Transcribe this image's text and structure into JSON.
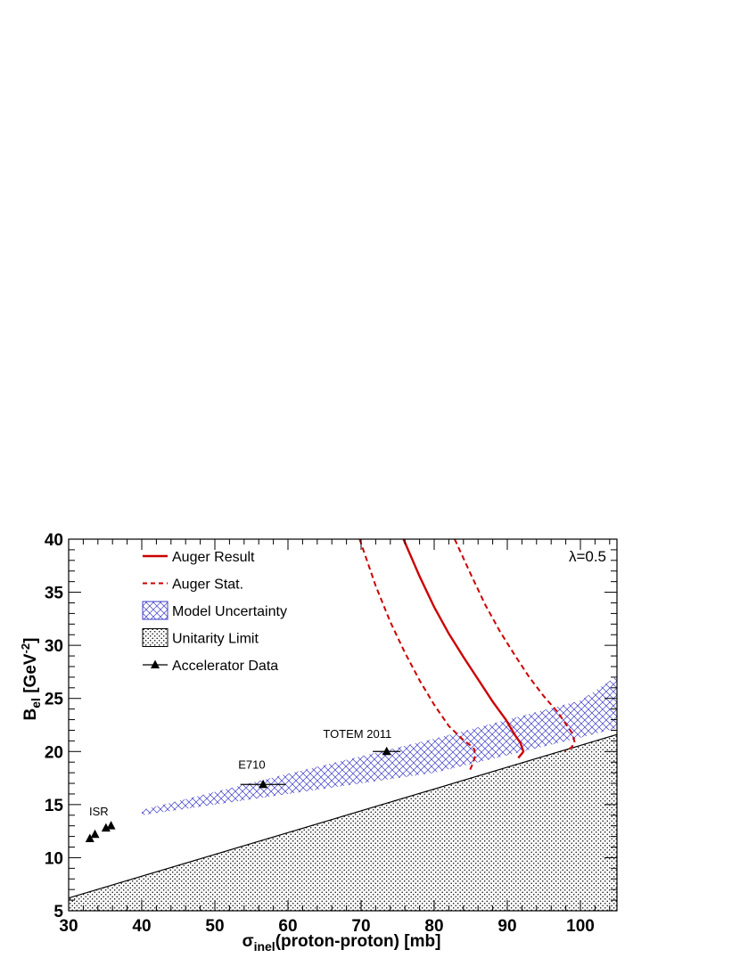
{
  "chart_data": {
    "type": "line",
    "xlabel": {
      "symbol": "σ",
      "sub": "inel",
      "rest": "(proton-proton)  [mb]"
    },
    "ylabel": {
      "symbol": "B",
      "sub": "el",
      "rest": "  [GeV",
      "sup": "-2",
      "close": "]"
    },
    "xlim": [
      30,
      105
    ],
    "ylim": [
      5,
      40
    ],
    "xticks": [
      "30",
      "40",
      "50",
      "60",
      "70",
      "80",
      "90",
      "100"
    ],
    "yticks": [
      "5",
      "10",
      "15",
      "20",
      "25",
      "30",
      "35",
      "40"
    ],
    "annotation": "λ=0.5",
    "legend_position": "top-left",
    "legend": [
      {
        "label": "Auger Result",
        "style": "solid-red"
      },
      {
        "label": "Auger Stat.",
        "style": "dashed-red"
      },
      {
        "label": "Model Uncertainty",
        "style": "blue-hatch"
      },
      {
        "label": "Unitarity Limit",
        "style": "black-dots"
      },
      {
        "label": "Accelerator Data",
        "style": "triangle-marker"
      }
    ],
    "colors": {
      "auger": "#cc0000",
      "model": "#3c3cc8",
      "unitarity": "#000000"
    },
    "series": [
      {
        "name": "Auger Result",
        "style": "solid",
        "x": [
          75.8,
          78,
          80,
          82,
          84,
          86,
          88,
          89.8,
          91,
          91.8,
          92.2,
          92.0,
          91.5
        ],
        "y": [
          40,
          36.5,
          33.6,
          31.1,
          28.9,
          26.8,
          24.7,
          23.0,
          21.6,
          20.8,
          20.0,
          19.8,
          19.4
        ]
      },
      {
        "name": "Auger Stat.",
        "style": "dashed",
        "x": [
          69.8,
          72,
          74,
          76,
          78,
          80,
          82,
          83.8,
          84.9,
          85.5,
          85.6,
          85.3,
          84.8
        ],
        "y": [
          40,
          35.6,
          32.2,
          29.3,
          26.7,
          24.4,
          22.4,
          21.2,
          20.6,
          20.2,
          19.6,
          18.9,
          18.1
        ]
      },
      {
        "name": "Auger Stat.",
        "style": "dashed",
        "x": [
          82.8,
          85,
          87,
          89,
          91,
          93,
          95,
          96.9,
          98.2,
          98.9,
          99.2,
          98.8,
          97.9
        ],
        "y": [
          40,
          36.7,
          33.8,
          31.3,
          29.1,
          27.0,
          25.2,
          23.7,
          22.4,
          21.7,
          20.9,
          20.4,
          20.0
        ]
      }
    ],
    "unitarity_limit": {
      "x": [
        30,
        105
      ],
      "y": [
        6.2,
        21.6
      ]
    },
    "model_band": {
      "upper": {
        "x": [
          40,
          60,
          80,
          100,
          105
        ],
        "y": [
          14.5,
          17.9,
          21.2,
          24.8,
          27.1
        ]
      },
      "lower": {
        "x": [
          40,
          60,
          80,
          100,
          105
        ],
        "y": [
          14.0,
          16.0,
          18.0,
          21.3,
          22.2
        ]
      }
    },
    "accelerator_data": [
      {
        "x": 32.9,
        "y": 11.8,
        "xerr": 0.3,
        "yerr": 0.2
      },
      {
        "x": 33.6,
        "y": 12.2,
        "xerr": 0.3,
        "yerr": 0.2
      },
      {
        "x": 35.1,
        "y": 12.8,
        "xerr": 0.3,
        "yerr": 0.2
      },
      {
        "x": 35.8,
        "y": 13.0,
        "xerr": 0.3,
        "yerr": 0.2
      },
      {
        "x": 56.6,
        "y": 16.9,
        "xerr": 3.1,
        "yerr": 0.3
      },
      {
        "x": 73.5,
        "y": 20.0,
        "xerr": 1.9,
        "yerr": 0.3
      }
    ],
    "point_labels": [
      {
        "text": "ISR",
        "x": 32.8,
        "y": 14.0
      },
      {
        "text": "E710",
        "x": 53.2,
        "y": 18.4
      },
      {
        "text": "TOTEM 2011",
        "x": 64.8,
        "y": 21.3
      }
    ]
  }
}
